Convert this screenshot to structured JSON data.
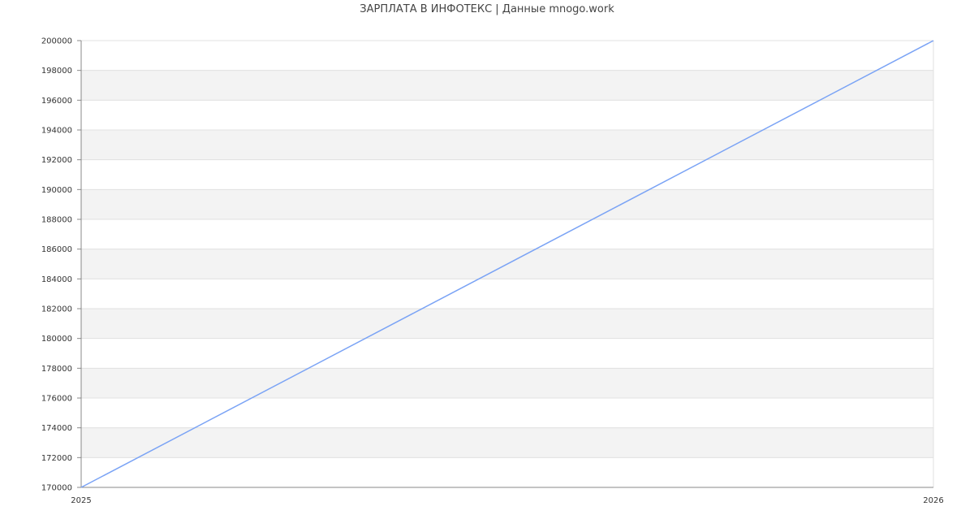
{
  "chart_data": {
    "type": "line",
    "title": "ЗАРПЛАТА В ИНФОТЕКС | Данные mnogo.work",
    "xlabel": "",
    "ylabel": "",
    "x": [
      "2025",
      "2026"
    ],
    "series": [
      {
        "values": [
          170000,
          200000
        ]
      }
    ],
    "ylim": [
      170000,
      200000
    ],
    "ystep": 2000,
    "yticks": [
      "170000",
      "172000",
      "174000",
      "176000",
      "178000",
      "180000",
      "182000",
      "184000",
      "186000",
      "188000",
      "190000",
      "192000",
      "194000",
      "196000",
      "198000",
      "200000"
    ],
    "xticks": [
      "2025",
      "2026"
    ],
    "grid": true,
    "legend": "none",
    "colors": {
      "line": "#7aa3f5",
      "band": "#f3f3f3",
      "grid": "#e0e0e0",
      "axis": "#888888"
    }
  }
}
